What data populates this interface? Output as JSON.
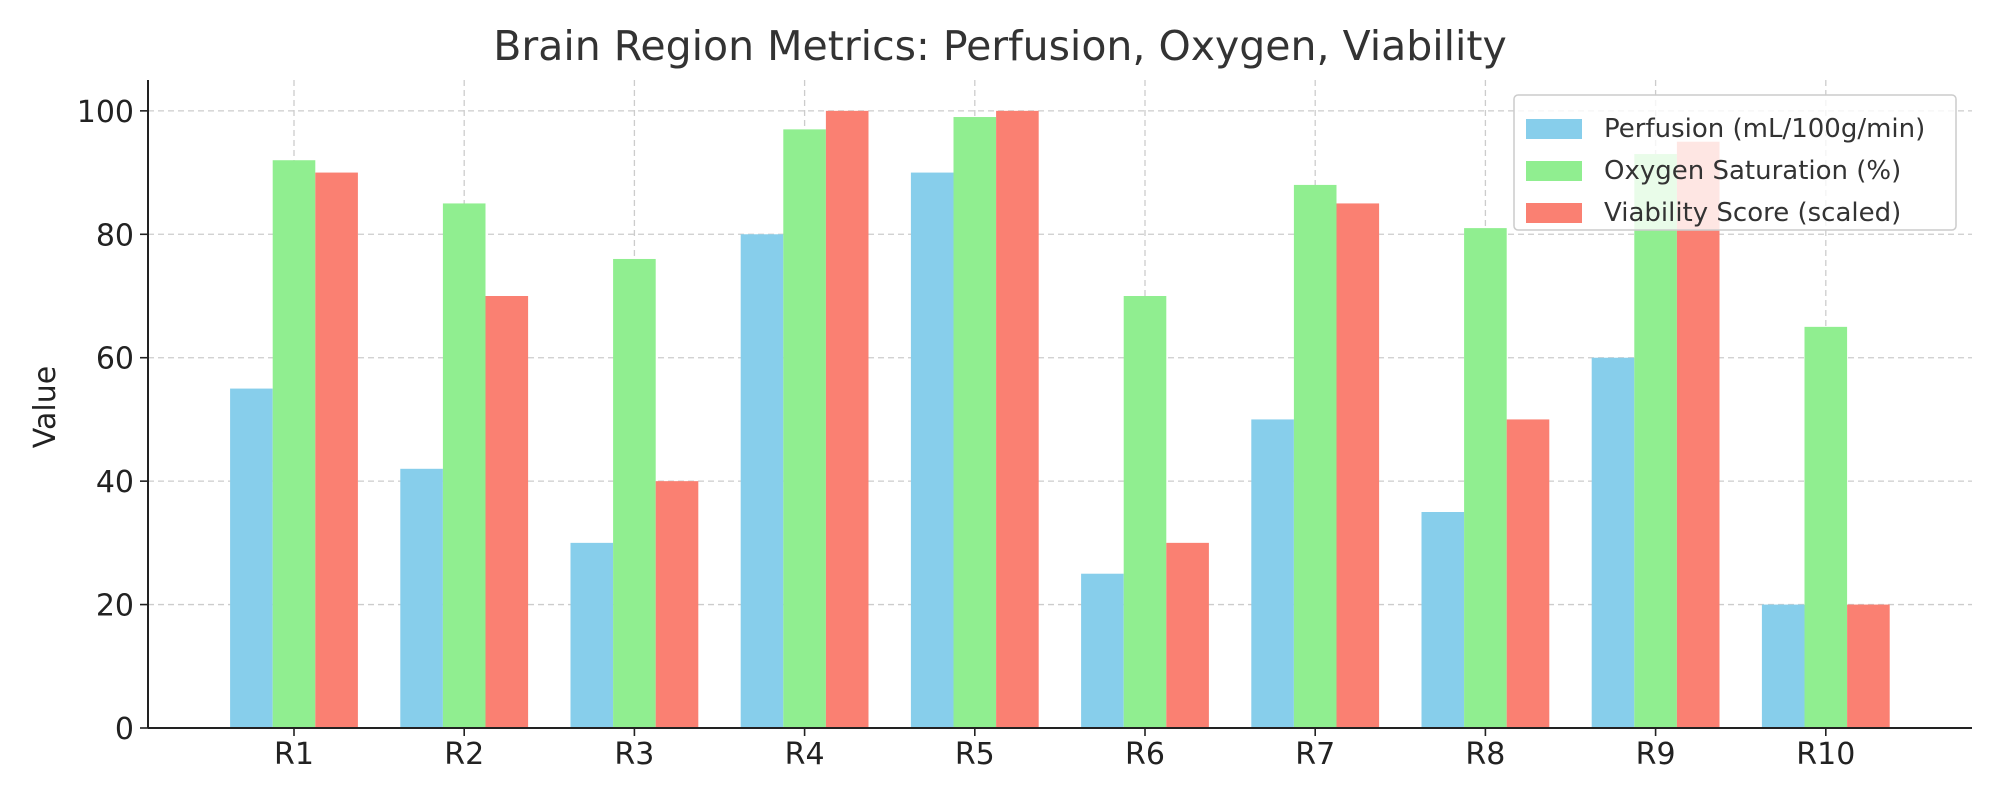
{
  "chart_data": {
    "type": "bar",
    "title": "Brain Region Metrics: Perfusion, Oxygen, Viability",
    "xlabel": "",
    "ylabel": "Value",
    "categories": [
      "R1",
      "R2",
      "R3",
      "R4",
      "R5",
      "R6",
      "R7",
      "R8",
      "R9",
      "R10"
    ],
    "series": [
      {
        "name": "Perfusion (mL/100g/min)",
        "color": "#87CEEB",
        "values": [
          55,
          42,
          30,
          80,
          90,
          25,
          50,
          35,
          60,
          20
        ]
      },
      {
        "name": "Oxygen Saturation (%)",
        "color": "#90EE90",
        "values": [
          92,
          85,
          76,
          97,
          99,
          70,
          88,
          81,
          93,
          65
        ]
      },
      {
        "name": "Viability Score (scaled)",
        "color": "#FA8072",
        "values": [
          90,
          70,
          40,
          100,
          100,
          30,
          85,
          50,
          95,
          20
        ]
      }
    ],
    "ylim": [
      0,
      105
    ],
    "yticks": [
      0,
      20,
      40,
      60,
      80,
      100
    ],
    "grid": true,
    "legend_position": "top-right"
  }
}
